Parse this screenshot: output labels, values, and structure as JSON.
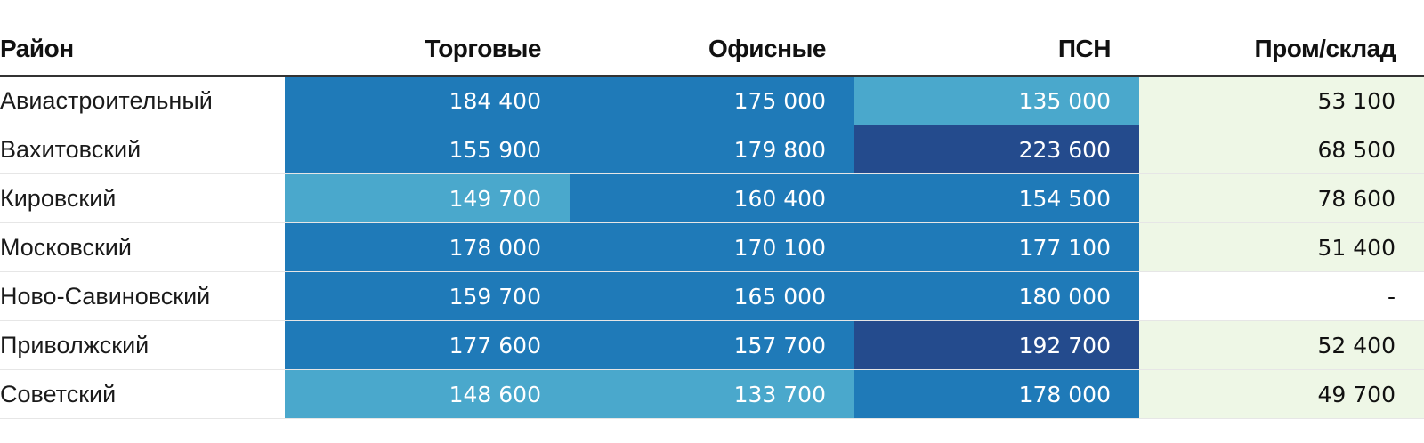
{
  "chart_data": {
    "type": "table",
    "columns": [
      "Район",
      "Торговые",
      "Офисные",
      "ПСН",
      "Пром/склад"
    ],
    "rows": [
      [
        "Авиастроительный",
        "184 400",
        "175 000",
        "135 000",
        "53 100"
      ],
      [
        "Вахитовский",
        "155 900",
        "179 800",
        "223 600",
        "68 500"
      ],
      [
        "Кировский",
        "149 700",
        "160 400",
        "154 500",
        "78 600"
      ],
      [
        "Московский",
        "178 000",
        "170 100",
        "177 100",
        "51 400"
      ],
      [
        "Ново-Савиновский",
        "159 700",
        "165 000",
        "180 000",
        "-"
      ],
      [
        "Приволжский",
        "177 600",
        "157 700",
        "192 700",
        "52 400"
      ],
      [
        "Советский",
        "148 600",
        "133 700",
        "178 000",
        "49 700"
      ]
    ],
    "cell_colors": [
      [
        null,
        "#1f7ab8",
        "#1f7ab8",
        "#4aa8cc",
        "#eef7e6"
      ],
      [
        null,
        "#1f7ab8",
        "#1f7ab8",
        "#244b8d",
        "#eef7e6"
      ],
      [
        null,
        "#4aa8cc",
        "#1f7ab8",
        "#1f7ab8",
        "#eef7e6"
      ],
      [
        null,
        "#1f7ab8",
        "#1f7ab8",
        "#1f7ab8",
        "#eef7e6"
      ],
      [
        null,
        "#1f7ab8",
        "#1f7ab8",
        "#1f7ab8",
        "#ffffff"
      ],
      [
        null,
        "#1f7ab8",
        "#1f7ab8",
        "#244b8d",
        "#eef7e6"
      ],
      [
        null,
        "#4aa8cc",
        "#4aa8cc",
        "#1f7ab8",
        "#eef7e6"
      ]
    ]
  }
}
